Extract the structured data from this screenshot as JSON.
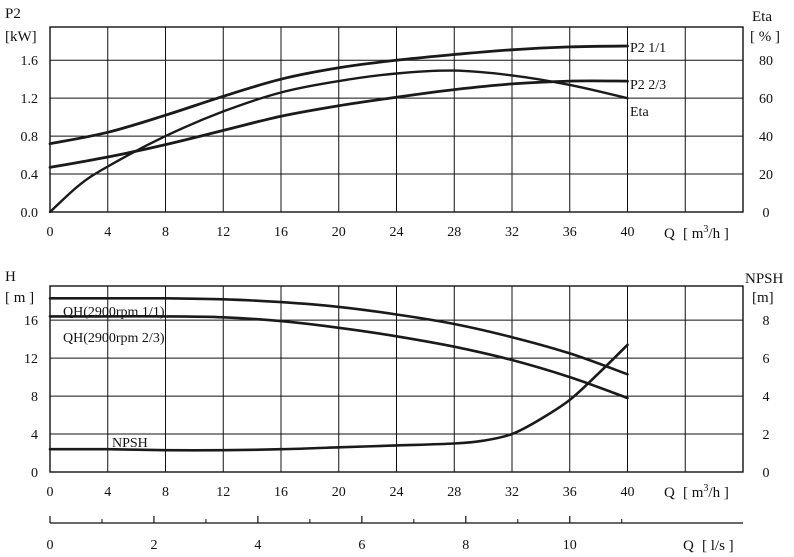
{
  "chart_data": [
    {
      "type": "line",
      "panel": "power-efficiency",
      "left_axis": {
        "title": "P2",
        "unit": "[kW]",
        "ticks": [
          0.0,
          0.4,
          0.8,
          1.2,
          1.6
        ],
        "tick_labels": [
          "0.0",
          "0.4",
          "0.8",
          "1.2",
          "1.6"
        ],
        "ylim": [
          0,
          1.95
        ]
      },
      "right_axis": {
        "title": "Eta",
        "unit": "[ % ]",
        "ticks": [
          0,
          20,
          40,
          60,
          80
        ],
        "tick_labels": [
          "0",
          "20",
          "40",
          "60",
          "80"
        ],
        "ylim": [
          0,
          97.5
        ]
      },
      "x_axis": {
        "label": "Q",
        "unit": "[ m³/h ]",
        "ticks": [
          0,
          4,
          8,
          12,
          16,
          20,
          24,
          28,
          32,
          36,
          40
        ],
        "tick_labels": [
          "0",
          "4",
          "8",
          "12",
          "16",
          "20",
          "24",
          "28",
          "32",
          "36",
          "40"
        ],
        "xlim": [
          0,
          48
        ]
      },
      "grid": true,
      "series": [
        {
          "name": "P2 1/1",
          "axis": "left",
          "x": [
            0,
            4,
            8,
            12,
            16,
            20,
            24,
            28,
            32,
            36,
            40
          ],
          "y": [
            0.72,
            0.84,
            1.02,
            1.22,
            1.4,
            1.52,
            1.6,
            1.66,
            1.71,
            1.74,
            1.75
          ]
        },
        {
          "name": "P2 2/3",
          "axis": "left",
          "x": [
            0,
            4,
            8,
            12,
            16,
            20,
            24,
            28,
            32,
            36,
            40
          ],
          "y": [
            0.47,
            0.58,
            0.71,
            0.86,
            1.01,
            1.12,
            1.21,
            1.29,
            1.35,
            1.38,
            1.38
          ]
        },
        {
          "name": "Eta",
          "axis": "right",
          "x": [
            0,
            2,
            4,
            8,
            12,
            16,
            20,
            24,
            28,
            32,
            36,
            40
          ],
          "y": [
            0,
            14,
            24,
            40,
            53,
            63,
            69,
            73,
            74.5,
            72,
            67,
            60
          ]
        }
      ]
    },
    {
      "type": "line",
      "panel": "head-npsh",
      "left_axis": {
        "title": "H",
        "unit": "[ m ]",
        "ticks": [
          0,
          4,
          8,
          12,
          16
        ],
        "tick_labels": [
          "0",
          "4",
          "8",
          "12",
          "16"
        ],
        "ylim": [
          0,
          19.6
        ]
      },
      "right_axis": {
        "title": "NPSH",
        "unit": "[m]",
        "ticks": [
          0,
          2,
          4,
          6,
          8
        ],
        "tick_labels": [
          "0",
          "2",
          "4",
          "6",
          "8"
        ],
        "ylim": [
          0,
          9.8
        ]
      },
      "x_axis": {
        "label": "Q",
        "unit": "[ m³/h ]",
        "ticks": [
          0,
          4,
          8,
          12,
          16,
          20,
          24,
          28,
          32,
          36,
          40
        ],
        "tick_labels": [
          "0",
          "4",
          "8",
          "12",
          "16",
          "20",
          "24",
          "28",
          "32",
          "36",
          "40"
        ],
        "xlim": [
          0,
          48
        ]
      },
      "x2_axis": {
        "label": "Q",
        "unit": "[ l/s ]",
        "ticks": [
          0,
          2,
          4,
          6,
          8,
          10
        ],
        "tick_labels": [
          "0",
          "2",
          "4",
          "6",
          "8",
          "10"
        ]
      },
      "grid": true,
      "series": [
        {
          "name": "QH(2900rpm 1/1)",
          "axis": "left",
          "x": [
            0,
            4,
            8,
            12,
            16,
            20,
            24,
            28,
            32,
            36,
            40
          ],
          "y": [
            18.3,
            18.3,
            18.3,
            18.2,
            17.9,
            17.4,
            16.6,
            15.6,
            14.2,
            12.5,
            10.3
          ]
        },
        {
          "name": "QH(2900rpm 2/3)",
          "axis": "left",
          "x": [
            0,
            4,
            8,
            12,
            16,
            20,
            24,
            28,
            32,
            36,
            40
          ],
          "y": [
            16.4,
            16.4,
            16.4,
            16.3,
            15.9,
            15.2,
            14.3,
            13.2,
            11.8,
            10.0,
            7.8
          ]
        },
        {
          "name": "NPSH",
          "axis": "right",
          "x": [
            0,
            4,
            8,
            12,
            16,
            20,
            24,
            28,
            30,
            32,
            34,
            36,
            38,
            40
          ],
          "y": [
            1.2,
            1.2,
            1.15,
            1.15,
            1.2,
            1.3,
            1.4,
            1.5,
            1.65,
            2.0,
            2.8,
            3.8,
            5.2,
            6.7
          ]
        }
      ]
    }
  ]
}
